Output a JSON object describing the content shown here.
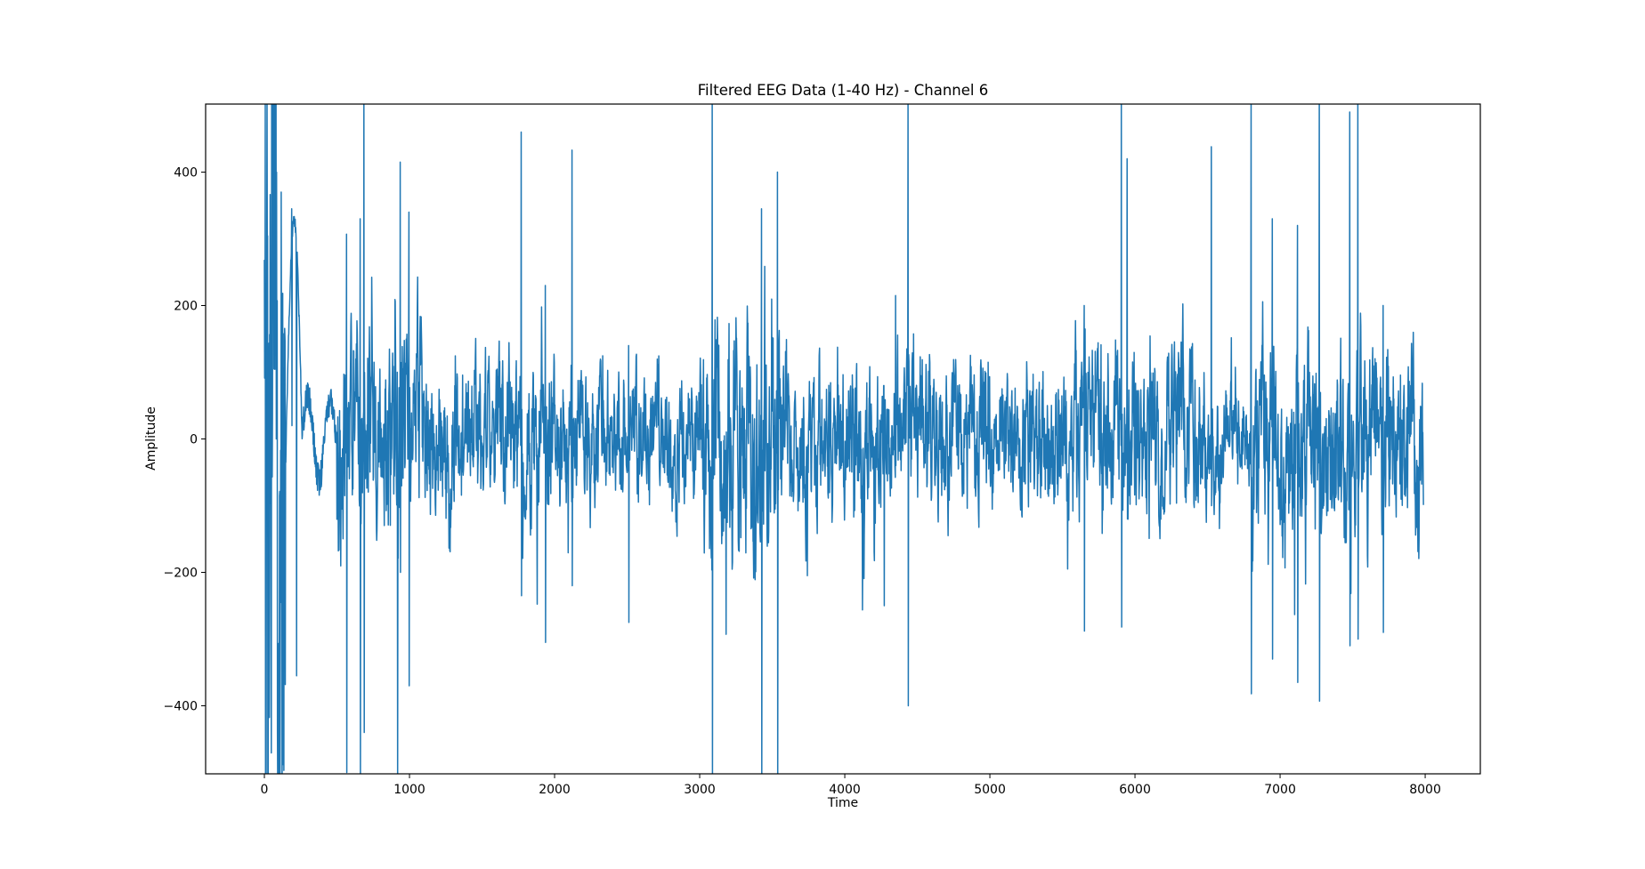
{
  "figure": {
    "title": "Filtered EEG Data (1-40 Hz) - Channel 6",
    "xlabel": "Time",
    "ylabel": "Amplitude",
    "line_color": "#1f77b4",
    "axes_color": "#000000",
    "background": "#ffffff"
  },
  "chart_data": {
    "type": "line",
    "title": "Filtered EEG Data (1-40 Hz) - Channel 6",
    "xlabel": "Time",
    "ylabel": "Amplitude",
    "xlim": [
      -405,
      8380
    ],
    "ylim": [
      -502,
      502
    ],
    "xticks": [
      0,
      1000,
      2000,
      3000,
      4000,
      5000,
      6000,
      7000,
      8000
    ],
    "xtick_labels": [
      "0",
      "1000",
      "2000",
      "3000",
      "4000",
      "5000",
      "6000",
      "7000",
      "8000"
    ],
    "yticks": [
      -400,
      -200,
      0,
      200,
      400
    ],
    "ytick_labels": [
      "−400",
      "−200",
      "0",
      "200",
      "400"
    ],
    "grid": false,
    "legend": null,
    "series": [
      {
        "name": "Channel 6",
        "color": "#1f77b4",
        "x_range": [
          0,
          7990
        ],
        "n_samples": 7990,
        "description": "Band-pass filtered EEG, dense oscillation mostly within ±200 with frequent large spikes exceeding the ±500 display range",
        "envelope": [
          {
            "t": [
              0,
              160
            ],
            "amp": 900
          },
          {
            "t": [
              160,
              260
            ],
            "amp": 60,
            "slow_wave_peak": 345
          },
          {
            "t": [
              260,
              500
            ],
            "amp": 60
          },
          {
            "t": [
              500,
              1100
            ],
            "amp": 170
          },
          {
            "t": [
              1100,
              2000
            ],
            "amp": 120
          },
          {
            "t": [
              2000,
              3000
            ],
            "amp": 95
          },
          {
            "t": [
              3000,
              3600
            ],
            "amp": 170
          },
          {
            "t": [
              3600,
              4400
            ],
            "amp": 115
          },
          {
            "t": [
              4400,
              5400
            ],
            "amp": 110
          },
          {
            "t": [
              5400,
              6500
            ],
            "amp": 120
          },
          {
            "t": [
              6500,
              6800
            ],
            "amp": 75
          },
          {
            "t": [
              6800,
              7990
            ],
            "amp": 150
          }
        ],
        "spikes": [
          {
            "t": 5,
            "y_max": 520,
            "y_min": -520
          },
          {
            "t": 50,
            "y_max": 520,
            "y_min": 0
          },
          {
            "t": 80,
            "y_max": 520,
            "y_min": 0
          },
          {
            "t": 120,
            "y_max": 0,
            "y_min": -520
          },
          {
            "t": 188,
            "y_max": 345,
            "y_min": 20
          },
          {
            "t": 220,
            "y_max": 140,
            "y_min": -355
          },
          {
            "t": 565,
            "y_max": 307,
            "y_min": -500
          },
          {
            "t": 660,
            "y_max": 330,
            "y_min": -520
          },
          {
            "t": 685,
            "y_max": 520,
            "y_min": -440
          },
          {
            "t": 915,
            "y_max": 100,
            "y_min": -520
          },
          {
            "t": 935,
            "y_max": 415,
            "y_min": -200
          },
          {
            "t": 995,
            "y_max": 340,
            "y_min": -370
          },
          {
            "t": 1770,
            "y_max": 460,
            "y_min": -235
          },
          {
            "t": 1935,
            "y_max": 230,
            "y_min": -305
          },
          {
            "t": 2120,
            "y_max": 433,
            "y_min": -220
          },
          {
            "t": 2510,
            "y_max": 140,
            "y_min": -275
          },
          {
            "t": 3085,
            "y_max": 520,
            "y_min": -520
          },
          {
            "t": 3425,
            "y_max": 345,
            "y_min": -520
          },
          {
            "t": 3535,
            "y_max": 400,
            "y_min": -520
          },
          {
            "t": 4270,
            "y_max": 80,
            "y_min": -250
          },
          {
            "t": 4350,
            "y_max": 215,
            "y_min": -40
          },
          {
            "t": 4435,
            "y_max": 520,
            "y_min": -400
          },
          {
            "t": 5650,
            "y_max": 200,
            "y_min": -288
          },
          {
            "t": 5905,
            "y_max": 520,
            "y_min": -282
          },
          {
            "t": 5945,
            "y_max": 420,
            "y_min": -120
          },
          {
            "t": 6525,
            "y_max": 438,
            "y_min": -100
          },
          {
            "t": 6800,
            "y_max": 520,
            "y_min": -382
          },
          {
            "t": 6945,
            "y_max": 330,
            "y_min": -330
          },
          {
            "t": 7120,
            "y_max": 320,
            "y_min": -365
          },
          {
            "t": 7270,
            "y_max": 520,
            "y_min": -393
          },
          {
            "t": 7480,
            "y_max": 490,
            "y_min": -310
          },
          {
            "t": 7535,
            "y_max": 520,
            "y_min": -300
          },
          {
            "t": 7710,
            "y_max": 200,
            "y_min": -290
          }
        ],
        "noise_seed": 6
      }
    ]
  }
}
